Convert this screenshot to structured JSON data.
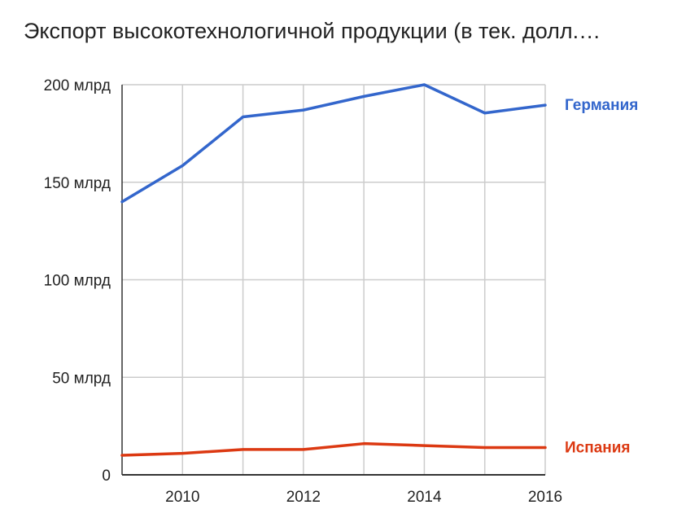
{
  "title": "Экспорт высокотехнологичной продукции (в тек. долл.…",
  "chart_data": {
    "type": "line",
    "x": [
      2009,
      2010,
      2011,
      2012,
      2013,
      2014,
      2015,
      2016
    ],
    "xlim": [
      2009,
      2016
    ],
    "ylim": [
      0,
      200000000000
    ],
    "x_ticks": [
      {
        "value": 2010,
        "label": "2010"
      },
      {
        "value": 2012,
        "label": "2012"
      },
      {
        "value": 2014,
        "label": "2014"
      },
      {
        "value": 2016,
        "label": "2016"
      }
    ],
    "y_ticks": [
      {
        "value": 0,
        "label": "0"
      },
      {
        "value": 50000000000,
        "label": "50 млрд"
      },
      {
        "value": 100000000000,
        "label": "100 млрд"
      },
      {
        "value": 150000000000,
        "label": "150 млрд"
      },
      {
        "value": 200000000000,
        "label": "200 млрд"
      }
    ],
    "x_gridlines": [
      2010,
      2011,
      2012,
      2013,
      2014,
      2015,
      2016
    ],
    "grid": true,
    "series": [
      {
        "name": "Германия",
        "color": "#3366cc",
        "values": [
          140000000000,
          158500000000,
          183500000000,
          187000000000,
          194000000000,
          200000000000,
          185500000000,
          189500000000
        ]
      },
      {
        "name": "Испания",
        "color": "#dc3912",
        "values": [
          10000000000,
          11000000000,
          13000000000,
          13000000000,
          16000000000,
          15000000000,
          14000000000,
          14000000000
        ]
      }
    ]
  }
}
